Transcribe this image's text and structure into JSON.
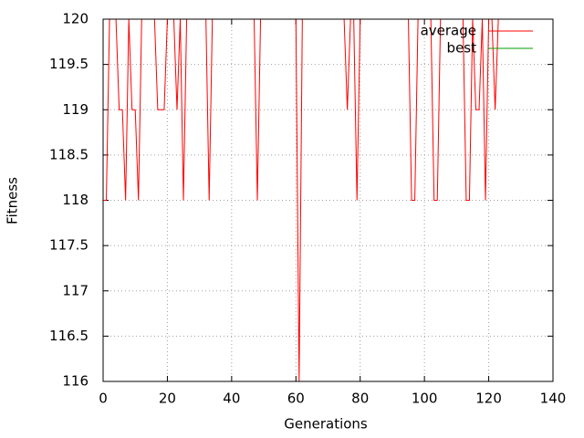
{
  "chart_data": {
    "type": "line",
    "x_label": "Generations",
    "y_label": "Fitness",
    "x": [
      0,
      1,
      2,
      3,
      4,
      5,
      6,
      7,
      8,
      9,
      10,
      11,
      12,
      13,
      14,
      15,
      16,
      17,
      18,
      19,
      20,
      21,
      22,
      23,
      24,
      25,
      26,
      27,
      28,
      29,
      30,
      31,
      32,
      33,
      34,
      35,
      36,
      37,
      38,
      39,
      40,
      41,
      42,
      43,
      44,
      45,
      46,
      47,
      48,
      49,
      50,
      51,
      52,
      53,
      54,
      55,
      56,
      57,
      58,
      59,
      60,
      61,
      62,
      63,
      64,
      65,
      66,
      67,
      68,
      69,
      70,
      71,
      72,
      73,
      74,
      75,
      76,
      77,
      78,
      79,
      80,
      81,
      82,
      83,
      84,
      85,
      86,
      87,
      88,
      89,
      90,
      91,
      92,
      93,
      94,
      95,
      96,
      97,
      98,
      99,
      100,
      101,
      102,
      103,
      104,
      105,
      106,
      107,
      108,
      109,
      110,
      111,
      112,
      113,
      114,
      115,
      116,
      117,
      118,
      119,
      120,
      121,
      122,
      123
    ],
    "series": [
      {
        "name": "average",
        "color": "#ff0000",
        "values": [
          118,
          118,
          120,
          120,
          120,
          119,
          119,
          118,
          120,
          119,
          119,
          118,
          120,
          120,
          120,
          120,
          120,
          119,
          119,
          119,
          120,
          120,
          120,
          119,
          120,
          118,
          120,
          120,
          120,
          120,
          120,
          120,
          120,
          118,
          120,
          120,
          120,
          120,
          120,
          120,
          120,
          120,
          120,
          120,
          120,
          120,
          120,
          120,
          118,
          120,
          120,
          120,
          120,
          120,
          120,
          120,
          120,
          120,
          120,
          120,
          120,
          116,
          120,
          120,
          120,
          120,
          120,
          120,
          120,
          120,
          120,
          120,
          120,
          120,
          120,
          120,
          119,
          120,
          120,
          118,
          120,
          120,
          120,
          120,
          120,
          120,
          120,
          120,
          120,
          120,
          120,
          120,
          120,
          120,
          120,
          120,
          118,
          118,
          120,
          120,
          120,
          120,
          120,
          118,
          118,
          120,
          120,
          120,
          120,
          120,
          120,
          120,
          120,
          118,
          118,
          120,
          119,
          119,
          120,
          118,
          120,
          120,
          119,
          120
        ]
      },
      {
        "name": "best",
        "color": "#00a000",
        "values": [
          120,
          120,
          120,
          120,
          120,
          120,
          120,
          120,
          120,
          120,
          120,
          120,
          120,
          120,
          120,
          120,
          120,
          120,
          120,
          120,
          120,
          120,
          120,
          120,
          120,
          120,
          120,
          120,
          120,
          120,
          120,
          120,
          120,
          120,
          120,
          120,
          120,
          120,
          120,
          120,
          120,
          120,
          120,
          120,
          120,
          120,
          120,
          120,
          120,
          120,
          120,
          120,
          120,
          120,
          120,
          120,
          120,
          120,
          120,
          120,
          120,
          120,
          120,
          120,
          120,
          120,
          120,
          120,
          120,
          120,
          120,
          120,
          120,
          120,
          120,
          120,
          120,
          120,
          120,
          120,
          120,
          120,
          120,
          120,
          120,
          120,
          120,
          120,
          120,
          120,
          120,
          120,
          120,
          120,
          120,
          120,
          120,
          120,
          120,
          120,
          120,
          120,
          120,
          120,
          120,
          120,
          120,
          120,
          120,
          120,
          120,
          120,
          120,
          120,
          120,
          120,
          120,
          120,
          120,
          120,
          120,
          120,
          120,
          120
        ]
      }
    ],
    "xlim": [
      0,
      140
    ],
    "xticks": [
      0,
      20,
      40,
      60,
      80,
      100,
      120,
      140
    ],
    "ylim": [
      116,
      120
    ],
    "yticks": [
      116,
      116.5,
      117,
      117.5,
      118,
      118.5,
      119,
      119.5,
      120
    ],
    "grid": true,
    "legend": "top-right"
  }
}
